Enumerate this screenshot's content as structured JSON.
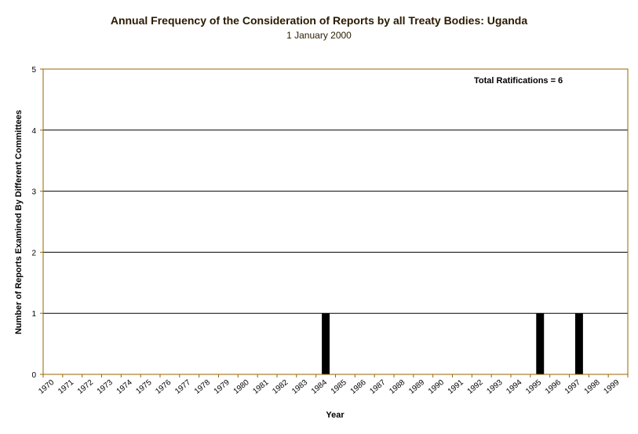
{
  "chart_data": {
    "type": "bar",
    "title": "Annual Frequency of the Consideration of Reports by all Treaty Bodies: Uganda",
    "subtitle": "1 January 2000",
    "xlabel": "Year",
    "ylabel": "Number of Reports Examined By Different Committees",
    "ylim": [
      0,
      5
    ],
    "yticks": [
      "0",
      "1",
      "2",
      "3",
      "4",
      "5"
    ],
    "categories": [
      "1970",
      "1971",
      "1972",
      "1973",
      "1974",
      "1975",
      "1976",
      "1977",
      "1978",
      "1979",
      "1980",
      "1981",
      "1982",
      "1983",
      "1984",
      "1985",
      "1986",
      "1987",
      "1988",
      "1989",
      "1990",
      "1991",
      "1992",
      "1993",
      "1994",
      "1995",
      "1996",
      "1997",
      "1998",
      "1999"
    ],
    "values": [
      0,
      0,
      0,
      0,
      0,
      0,
      0,
      0,
      0,
      0,
      0,
      0,
      0,
      0,
      1,
      0,
      0,
      0,
      0,
      0,
      0,
      0,
      0,
      0,
      0,
      1,
      0,
      1,
      0,
      0
    ],
    "annotation": "Total Ratifications = 6",
    "grid": true,
    "colors": {
      "bar": "#000000",
      "axis": "#996600",
      "grid": "#000000"
    }
  }
}
